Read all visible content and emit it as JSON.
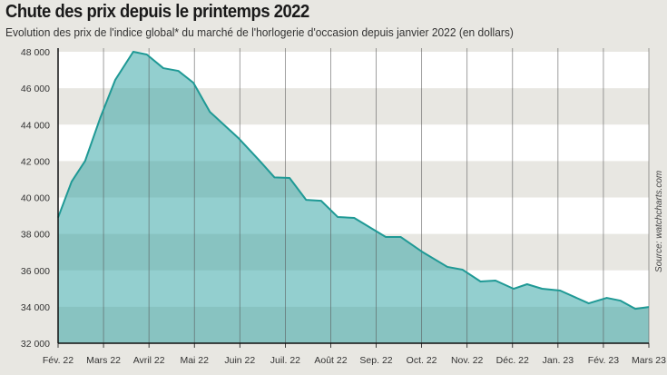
{
  "title": "Chute des prix depuis le printemps 2022",
  "subtitle": "Evolution des prix de l'indice global* du marché de l'horlogerie d'occasion depuis janvier 2022 (en dollars)",
  "source": "Source: watchcharts.com",
  "colors": {
    "line": "#1f9995",
    "fill": "#28a0a0",
    "band": "#ffffff",
    "background": "#e8e7e2",
    "axis": "#111111",
    "gridline": "#555555"
  },
  "chart_data": {
    "type": "area",
    "title": "Chute des prix depuis le printemps 2022",
    "xlabel": "",
    "ylabel": "",
    "ylim": [
      32000,
      48000
    ],
    "yticks": [
      32000,
      34000,
      36000,
      38000,
      40000,
      42000,
      44000,
      46000,
      48000
    ],
    "ytick_labels": [
      "32 000",
      "34 000",
      "36 000",
      "38 000",
      "40 000",
      "42 000",
      "44 000",
      "46 000",
      "48 000"
    ],
    "xlim": [
      "2022-02-01",
      "2023-03-01"
    ],
    "xtick_labels": [
      "Fév. 22",
      "Mars 22",
      "Avril 22",
      "Mai 22",
      "Juin 22",
      "Juil. 22",
      "Août 22",
      "Sep. 22",
      "Oct. 22",
      "Nov. 22",
      "Déc. 22",
      "Jan. 23",
      "Fév. 23",
      "Mars 23"
    ],
    "grid": "vertical lines at months, alternating horizontal bands",
    "points": [
      {
        "date": "2022-02-01",
        "value": 38900
      },
      {
        "date": "2022-02-10",
        "value": 40870
      },
      {
        "date": "2022-02-19",
        "value": 42010
      },
      {
        "date": "2022-03-01",
        "value": 44360
      },
      {
        "date": "2022-03-11",
        "value": 46450
      },
      {
        "date": "2022-03-23",
        "value": 48000
      },
      {
        "date": "2022-04-01",
        "value": 47850
      },
      {
        "date": "2022-04-12",
        "value": 47100
      },
      {
        "date": "2022-04-22",
        "value": 46950
      },
      {
        "date": "2022-05-02",
        "value": 46300
      },
      {
        "date": "2022-05-13",
        "value": 44700
      },
      {
        "date": "2022-06-01",
        "value": 43260
      },
      {
        "date": "2022-06-15",
        "value": 42020
      },
      {
        "date": "2022-06-25",
        "value": 41100
      },
      {
        "date": "2022-07-05",
        "value": 41070
      },
      {
        "date": "2022-07-16",
        "value": 39870
      },
      {
        "date": "2022-07-26",
        "value": 39820
      },
      {
        "date": "2022-08-06",
        "value": 38930
      },
      {
        "date": "2022-08-17",
        "value": 38880
      },
      {
        "date": "2022-09-01",
        "value": 38130
      },
      {
        "date": "2022-09-07",
        "value": 37830
      },
      {
        "date": "2022-09-17",
        "value": 37830
      },
      {
        "date": "2022-10-01",
        "value": 37030
      },
      {
        "date": "2022-10-18",
        "value": 36190
      },
      {
        "date": "2022-10-28",
        "value": 36040
      },
      {
        "date": "2022-11-09",
        "value": 35390
      },
      {
        "date": "2022-11-19",
        "value": 35440
      },
      {
        "date": "2022-12-01",
        "value": 34990
      },
      {
        "date": "2022-12-10",
        "value": 35240
      },
      {
        "date": "2022-12-20",
        "value": 34990
      },
      {
        "date": "2023-01-01",
        "value": 34890
      },
      {
        "date": "2023-01-20",
        "value": 34190
      },
      {
        "date": "2023-02-01",
        "value": 34490
      },
      {
        "date": "2023-02-10",
        "value": 34340
      },
      {
        "date": "2023-02-20",
        "value": 33890
      },
      {
        "date": "2023-03-01",
        "value": 33990
      }
    ]
  }
}
